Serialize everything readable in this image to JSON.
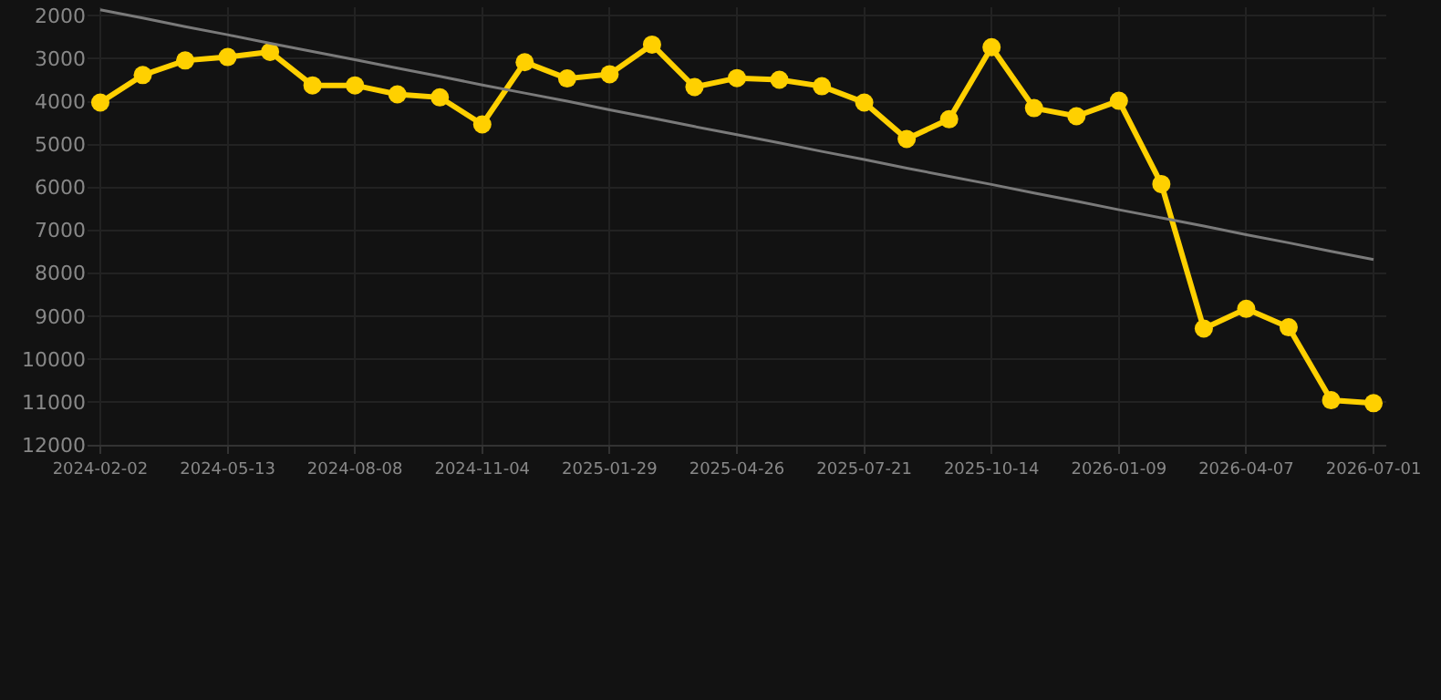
{
  "chart_data": {
    "type": "line",
    "categories": [
      "2024-02-02",
      null,
      null,
      "2024-05-13",
      null,
      null,
      "2024-08-08",
      null,
      null,
      "2024-11-04",
      null,
      null,
      "2025-01-29",
      null,
      null,
      "2025-04-26",
      null,
      null,
      "2025-07-21",
      null,
      null,
      "2025-10-14",
      null,
      null,
      "2026-01-09",
      null,
      null,
      "2026-04-07",
      null,
      null,
      "2026-07-01"
    ],
    "series": [
      {
        "color": "#ffd000",
        "marker": "circle",
        "values": [
          4020,
          3380,
          3040,
          2960,
          2840,
          3620,
          3620,
          3830,
          3900,
          4530,
          3080,
          3460,
          3360,
          2670,
          3660,
          3450,
          3490,
          3640,
          4020,
          4870,
          4410,
          2730,
          4150,
          4340,
          3980,
          5920,
          9290,
          8830,
          9260,
          10960,
          11030
        ]
      },
      {
        "color": "#7a7a7a",
        "marker": "none",
        "values": [
          1860,
          2050,
          2250,
          2440,
          2640,
          2830,
          3020,
          3220,
          3410,
          3610,
          3800,
          3990,
          4190,
          4380,
          4580,
          4770,
          4960,
          5160,
          5350,
          5550,
          5740,
          5930,
          6130,
          6320,
          6520,
          6710,
          6900,
          7100,
          7290,
          7490,
          7680
        ]
      }
    ],
    "ylim": [
      12000,
      1800
    ],
    "yticks": [
      2000,
      3000,
      4000,
      5000,
      6000,
      7000,
      8000,
      9000,
      10000,
      11000,
      12000
    ],
    "grid": true
  }
}
